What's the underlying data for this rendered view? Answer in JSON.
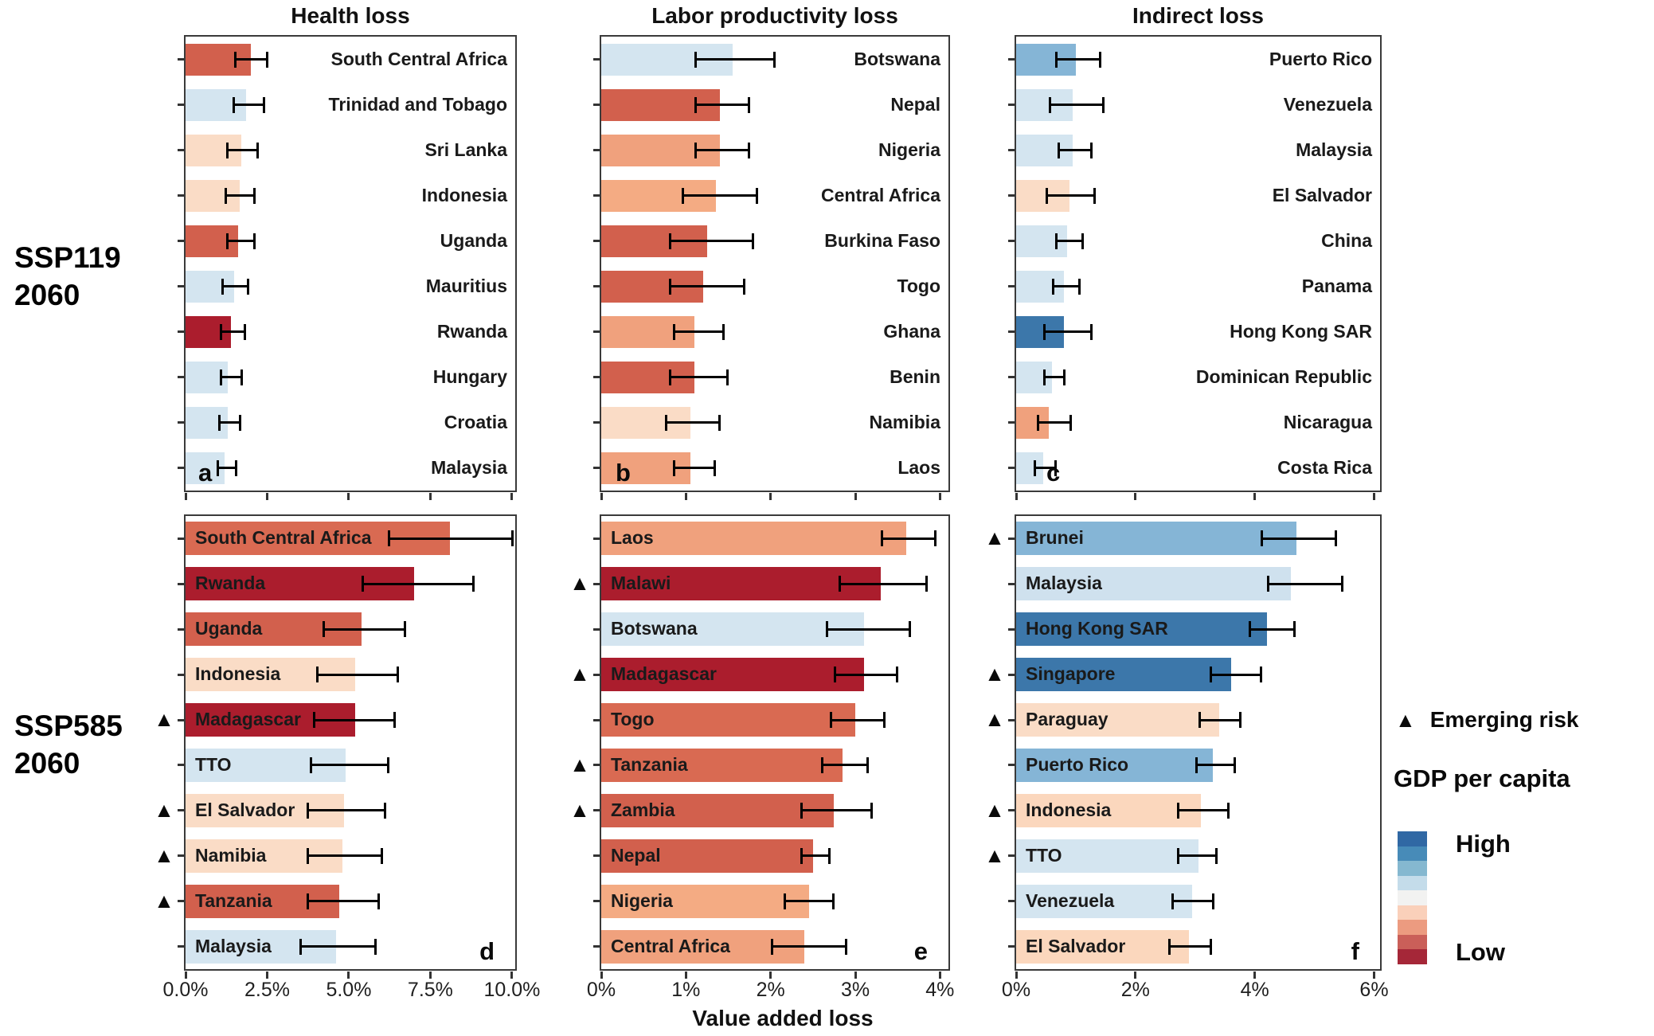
{
  "columns": [
    "Health loss",
    "Labor productivity loss",
    "Indirect loss"
  ],
  "rows": [
    {
      "line1": "SSP119",
      "line2": "2060"
    },
    {
      "line1": "SSP585",
      "line2": "2060"
    }
  ],
  "xlabel": "Value added loss",
  "legend": {
    "triangle": "▲",
    "emerging_risk_label": "Emerging risk",
    "gdp_title": "GDP per capita",
    "high_label": "High",
    "low_label": "Low",
    "colors": [
      "#3068a4",
      "#478bb8",
      "#85b8d0",
      "#c4dcea",
      "#f2f2f1",
      "#fad0ba",
      "#ec9b80",
      "#ca5f59",
      "#a52738"
    ]
  },
  "chart_data": [
    {
      "id": "a",
      "letter": "a",
      "type": "bar",
      "orientation": "horizontal",
      "scenario": "SSP119 2060",
      "measure": "Health loss",
      "units": "% value added loss",
      "axis_max": 10.1,
      "ticks": [
        0,
        2.5,
        5,
        7.5,
        10
      ],
      "tick_labels": null,
      "label_side": "right",
      "bars": [
        {
          "country": "South Central Africa",
          "value": 2.0,
          "lo": 1.5,
          "hi": 2.4,
          "color": "#d2604d",
          "emerging": false
        },
        {
          "country": "Trinidad and Tobago",
          "value": 1.85,
          "lo": 1.45,
          "hi": 2.3,
          "color": "#d4e5f0",
          "emerging": false
        },
        {
          "country": "Sri Lanka",
          "value": 1.7,
          "lo": 1.25,
          "hi": 2.1,
          "color": "#fadcc6",
          "emerging": false
        },
        {
          "country": "Indonesia",
          "value": 1.65,
          "lo": 1.2,
          "hi": 2.0,
          "color": "#fadcc6",
          "emerging": false
        },
        {
          "country": "Uganda",
          "value": 1.6,
          "lo": 1.25,
          "hi": 2.0,
          "color": "#d2604d",
          "emerging": false
        },
        {
          "country": "Mauritius",
          "value": 1.5,
          "lo": 1.1,
          "hi": 1.8,
          "color": "#d4e5f0",
          "emerging": false
        },
        {
          "country": "Rwanda",
          "value": 1.4,
          "lo": 1.05,
          "hi": 1.7,
          "color": "#ab1d2d",
          "emerging": false
        },
        {
          "country": "Hungary",
          "value": 1.3,
          "lo": 1.05,
          "hi": 1.6,
          "color": "#d4e5f0",
          "emerging": false
        },
        {
          "country": "Croatia",
          "value": 1.3,
          "lo": 1.0,
          "hi": 1.55,
          "color": "#d4e5f0",
          "emerging": false
        },
        {
          "country": "Malaysia",
          "value": 1.2,
          "lo": 0.95,
          "hi": 1.45,
          "color": "#d4e5f0",
          "emerging": false
        }
      ]
    },
    {
      "id": "b",
      "letter": "b",
      "type": "bar",
      "orientation": "horizontal",
      "scenario": "SSP119 2060",
      "measure": "Labor productivity loss",
      "units": "% value added loss",
      "axis_max": 4.1,
      "ticks": [
        0,
        1,
        2,
        3,
        4
      ],
      "tick_labels": null,
      "label_side": "right",
      "bars": [
        {
          "country": "Botswana",
          "value": 1.55,
          "lo": 1.1,
          "hi": 2.0,
          "color": "#d4e5f0",
          "emerging": false
        },
        {
          "country": "Nepal",
          "value": 1.4,
          "lo": 1.1,
          "hi": 1.7,
          "color": "#d2604d",
          "emerging": false
        },
        {
          "country": "Nigeria",
          "value": 1.4,
          "lo": 1.1,
          "hi": 1.7,
          "color": "#f0a17d",
          "emerging": false
        },
        {
          "country": "Central Africa",
          "value": 1.35,
          "lo": 0.95,
          "hi": 1.8,
          "color": "#f4ab83",
          "emerging": false
        },
        {
          "country": "Burkina Faso",
          "value": 1.25,
          "lo": 0.8,
          "hi": 1.75,
          "color": "#d2604d",
          "emerging": false
        },
        {
          "country": "Togo",
          "value": 1.2,
          "lo": 0.8,
          "hi": 1.65,
          "color": "#d2604d",
          "emerging": false
        },
        {
          "country": "Ghana",
          "value": 1.1,
          "lo": 0.85,
          "hi": 1.4,
          "color": "#f0a17d",
          "emerging": false
        },
        {
          "country": "Benin",
          "value": 1.1,
          "lo": 0.8,
          "hi": 1.45,
          "color": "#d2604d",
          "emerging": false
        },
        {
          "country": "Namibia",
          "value": 1.05,
          "lo": 0.75,
          "hi": 1.35,
          "color": "#fadcc6",
          "emerging": false
        },
        {
          "country": "Laos",
          "value": 1.05,
          "lo": 0.85,
          "hi": 1.3,
          "color": "#f0a17d",
          "emerging": false
        }
      ]
    },
    {
      "id": "c",
      "letter": "c",
      "type": "bar",
      "orientation": "horizontal",
      "scenario": "SSP119 2060",
      "measure": "Indirect loss",
      "units": "% value added loss",
      "axis_max": 6.1,
      "ticks": [
        0,
        2,
        4,
        6
      ],
      "tick_labels": null,
      "label_side": "right",
      "bars": [
        {
          "country": "Puerto Rico",
          "value": 1.0,
          "lo": 0.65,
          "hi": 1.35,
          "color": "#85b5d6",
          "emerging": false
        },
        {
          "country": "Venezuela",
          "value": 0.95,
          "lo": 0.55,
          "hi": 1.4,
          "color": "#d4e5f0",
          "emerging": false
        },
        {
          "country": "Malaysia",
          "value": 0.95,
          "lo": 0.7,
          "hi": 1.2,
          "color": "#d4e5f0",
          "emerging": false
        },
        {
          "country": "El Salvador",
          "value": 0.9,
          "lo": 0.5,
          "hi": 1.25,
          "color": "#fadcc6",
          "emerging": false
        },
        {
          "country": "China",
          "value": 0.85,
          "lo": 0.65,
          "hi": 1.05,
          "color": "#d4e5f0",
          "emerging": false
        },
        {
          "country": "Panama",
          "value": 0.8,
          "lo": 0.6,
          "hi": 1.0,
          "color": "#d4e5f0",
          "emerging": false
        },
        {
          "country": "Hong Kong SAR",
          "value": 0.8,
          "lo": 0.45,
          "hi": 1.2,
          "color": "#3c77aa",
          "emerging": false
        },
        {
          "country": "Dominican Republic",
          "value": 0.6,
          "lo": 0.45,
          "hi": 0.75,
          "color": "#d4e5f0",
          "emerging": false
        },
        {
          "country": "Nicaragua",
          "value": 0.55,
          "lo": 0.35,
          "hi": 0.85,
          "color": "#f0a17d",
          "emerging": false
        },
        {
          "country": "Costa Rica",
          "value": 0.45,
          "lo": 0.3,
          "hi": 0.6,
          "color": "#d4e5f0",
          "emerging": false
        }
      ]
    },
    {
      "id": "d",
      "letter": "d",
      "type": "bar",
      "orientation": "horizontal",
      "scenario": "SSP585 2060",
      "measure": "Health loss",
      "units": "% value added loss",
      "axis_max": 10.1,
      "ticks": [
        0,
        2.5,
        5,
        7.5,
        10
      ],
      "tick_labels": [
        "0.0%",
        "2.5%",
        "5.0%",
        "7.5%",
        "10.0%"
      ],
      "label_side": "left",
      "bars": [
        {
          "country": "South Central Africa",
          "value": 8.1,
          "lo": 6.2,
          "hi": 9.9,
          "color": "#d96a52",
          "emerging": false
        },
        {
          "country": "Rwanda",
          "value": 7.0,
          "lo": 5.4,
          "hi": 8.7,
          "color": "#ab1d2d",
          "emerging": false
        },
        {
          "country": "Uganda",
          "value": 5.4,
          "lo": 4.2,
          "hi": 6.6,
          "color": "#d2604d",
          "emerging": false
        },
        {
          "country": "Indonesia",
          "value": 5.2,
          "lo": 4.0,
          "hi": 6.4,
          "color": "#fadcc6",
          "emerging": false
        },
        {
          "country": "Madagascar",
          "value": 5.2,
          "lo": 3.9,
          "hi": 6.3,
          "color": "#ab1d2d",
          "emerging": true
        },
        {
          "country": "TTO",
          "value": 4.9,
          "lo": 3.8,
          "hi": 6.1,
          "color": "#d4e5f0",
          "emerging": false
        },
        {
          "country": "El Salvador",
          "value": 4.85,
          "lo": 3.7,
          "hi": 6.0,
          "color": "#fadcc6",
          "emerging": true
        },
        {
          "country": "Namibia",
          "value": 4.8,
          "lo": 3.7,
          "hi": 5.9,
          "color": "#fadcc6",
          "emerging": true
        },
        {
          "country": "Tanzania",
          "value": 4.7,
          "lo": 3.7,
          "hi": 5.8,
          "color": "#d2604d",
          "emerging": true
        },
        {
          "country": "Malaysia",
          "value": 4.6,
          "lo": 3.5,
          "hi": 5.7,
          "color": "#d4e5f0",
          "emerging": false
        }
      ]
    },
    {
      "id": "e",
      "letter": "e",
      "type": "bar",
      "orientation": "horizontal",
      "scenario": "SSP585 2060",
      "measure": "Labor productivity loss",
      "units": "% value added loss",
      "axis_max": 4.1,
      "ticks": [
        0,
        1,
        2,
        3,
        4
      ],
      "tick_labels": [
        "0%",
        "1%",
        "2%",
        "3%",
        "4%"
      ],
      "label_side": "left",
      "bars": [
        {
          "country": "Laos",
          "value": 3.6,
          "lo": 3.3,
          "hi": 3.9,
          "color": "#f0a17d",
          "emerging": false
        },
        {
          "country": "Malawi",
          "value": 3.3,
          "lo": 2.8,
          "hi": 3.8,
          "color": "#ab1d2d",
          "emerging": true
        },
        {
          "country": "Botswana",
          "value": 3.1,
          "lo": 2.65,
          "hi": 3.6,
          "color": "#d4e5f0",
          "emerging": false
        },
        {
          "country": "Madagascar",
          "value": 3.1,
          "lo": 2.75,
          "hi": 3.45,
          "color": "#ab1d2d",
          "emerging": true
        },
        {
          "country": "Togo",
          "value": 3.0,
          "lo": 2.7,
          "hi": 3.3,
          "color": "#d96a52",
          "emerging": false
        },
        {
          "country": "Tanzania",
          "value": 2.85,
          "lo": 2.6,
          "hi": 3.1,
          "color": "#d96a52",
          "emerging": true
        },
        {
          "country": "Zambia",
          "value": 2.75,
          "lo": 2.35,
          "hi": 3.15,
          "color": "#d2604d",
          "emerging": true
        },
        {
          "country": "Nepal",
          "value": 2.5,
          "lo": 2.35,
          "hi": 2.65,
          "color": "#d2604d",
          "emerging": false
        },
        {
          "country": "Nigeria",
          "value": 2.45,
          "lo": 2.15,
          "hi": 2.7,
          "color": "#f4ab83",
          "emerging": false
        },
        {
          "country": "Central Africa",
          "value": 2.4,
          "lo": 2.0,
          "hi": 2.85,
          "color": "#f0a17d",
          "emerging": false
        }
      ]
    },
    {
      "id": "f",
      "letter": "f",
      "type": "bar",
      "orientation": "horizontal",
      "scenario": "SSP585 2060",
      "measure": "Indirect loss",
      "units": "% value added loss",
      "axis_max": 6.1,
      "ticks": [
        0,
        2,
        4,
        6
      ],
      "tick_labels": [
        "0%",
        "2%",
        "4%",
        "6%"
      ],
      "label_side": "left",
      "bars": [
        {
          "country": "Brunei",
          "value": 4.7,
          "lo": 4.1,
          "hi": 5.3,
          "color": "#85b5d6",
          "emerging": true
        },
        {
          "country": "Malaysia",
          "value": 4.6,
          "lo": 4.2,
          "hi": 5.4,
          "color": "#cfe1ee",
          "emerging": false
        },
        {
          "country": "Hong Kong SAR",
          "value": 4.2,
          "lo": 3.9,
          "hi": 4.6,
          "color": "#3c77aa",
          "emerging": false
        },
        {
          "country": "Singapore",
          "value": 3.6,
          "lo": 3.25,
          "hi": 4.05,
          "color": "#3c77aa",
          "emerging": true
        },
        {
          "country": "Paraguay",
          "value": 3.4,
          "lo": 3.05,
          "hi": 3.7,
          "color": "#fadcc6",
          "emerging": true
        },
        {
          "country": "Puerto Rico",
          "value": 3.3,
          "lo": 3.0,
          "hi": 3.6,
          "color": "#85b5d6",
          "emerging": false
        },
        {
          "country": "Indonesia",
          "value": 3.1,
          "lo": 2.7,
          "hi": 3.5,
          "color": "#fbd7bd",
          "emerging": true
        },
        {
          "country": "TTO",
          "value": 3.05,
          "lo": 2.7,
          "hi": 3.3,
          "color": "#d4e5f0",
          "emerging": true
        },
        {
          "country": "Venezuela",
          "value": 2.95,
          "lo": 2.6,
          "hi": 3.25,
          "color": "#d4e5f0",
          "emerging": false
        },
        {
          "country": "El Salvador",
          "value": 2.9,
          "lo": 2.55,
          "hi": 3.2,
          "color": "#fbd7bd",
          "emerging": false
        }
      ]
    }
  ]
}
